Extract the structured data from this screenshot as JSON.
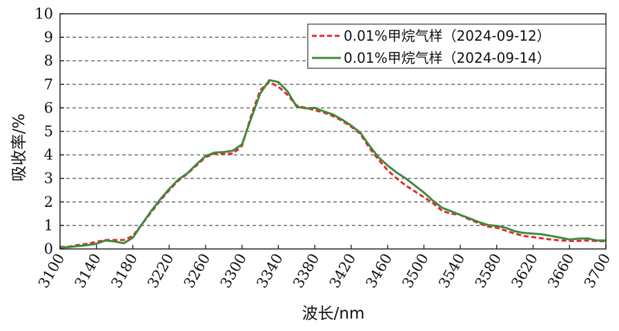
{
  "chart_data": {
    "type": "line",
    "xlabel": "波长/nm",
    "ylabel": "吸收率/%",
    "xlim": [
      3100,
      3700
    ],
    "ylim": [
      0,
      10
    ],
    "x_ticks": [
      "3100",
      "3140",
      "3180",
      "3220",
      "3260",
      "3300",
      "3340",
      "3380",
      "3420",
      "3460",
      "3500",
      "3540",
      "3580",
      "3620",
      "3660",
      "3700"
    ],
    "y_ticks": [
      "0",
      "1",
      "2",
      "3",
      "4",
      "5",
      "6",
      "7",
      "8",
      "9",
      "10"
    ],
    "grid": "horizontal dashed",
    "legend_position": "top-right",
    "x": [
      3100,
      3110,
      3120,
      3130,
      3140,
      3150,
      3160,
      3170,
      3180,
      3190,
      3200,
      3210,
      3220,
      3230,
      3240,
      3250,
      3260,
      3270,
      3280,
      3290,
      3300,
      3310,
      3320,
      3330,
      3340,
      3350,
      3360,
      3370,
      3380,
      3390,
      3400,
      3410,
      3420,
      3430,
      3440,
      3450,
      3460,
      3470,
      3480,
      3490,
      3500,
      3510,
      3520,
      3530,
      3540,
      3550,
      3560,
      3570,
      3580,
      3590,
      3600,
      3610,
      3620,
      3630,
      3640,
      3650,
      3660,
      3670,
      3680,
      3690,
      3700
    ],
    "series": [
      {
        "name": "0.01%甲烷气样（2024-09-12）",
        "color": "#e8262a",
        "style": "dashed",
        "values": [
          0.08,
          0.1,
          0.17,
          0.22,
          0.3,
          0.38,
          0.38,
          0.38,
          0.55,
          1.05,
          1.55,
          2.05,
          2.5,
          2.9,
          3.2,
          3.55,
          3.9,
          4.05,
          4.05,
          4.05,
          4.38,
          5.65,
          6.75,
          7.1,
          6.9,
          6.55,
          6.1,
          6.0,
          5.9,
          5.8,
          5.65,
          5.45,
          5.2,
          4.9,
          4.3,
          3.8,
          3.35,
          3.0,
          2.7,
          2.45,
          2.2,
          1.95,
          1.62,
          1.5,
          1.45,
          1.25,
          1.1,
          0.95,
          0.9,
          0.78,
          0.65,
          0.55,
          0.5,
          0.45,
          0.4,
          0.36,
          0.34,
          0.34,
          0.36,
          0.33,
          0.33
        ]
      },
      {
        "name": "0.01%甲烷气样（2024-09-14）",
        "color": "#3d8a3d",
        "style": "solid",
        "values": [
          0.05,
          0.08,
          0.12,
          0.16,
          0.22,
          0.36,
          0.32,
          0.24,
          0.48,
          1.05,
          1.6,
          2.1,
          2.55,
          2.95,
          3.22,
          3.6,
          3.95,
          4.1,
          4.12,
          4.18,
          4.45,
          5.55,
          6.6,
          7.18,
          7.1,
          6.7,
          6.05,
          5.98,
          6.0,
          5.85,
          5.72,
          5.5,
          5.25,
          4.95,
          4.4,
          3.9,
          3.55,
          3.25,
          3.0,
          2.7,
          2.4,
          2.05,
          1.75,
          1.6,
          1.45,
          1.3,
          1.15,
          1.02,
          0.98,
          0.9,
          0.75,
          0.68,
          0.65,
          0.62,
          0.55,
          0.48,
          0.4,
          0.44,
          0.45,
          0.36,
          0.36
        ]
      }
    ]
  }
}
